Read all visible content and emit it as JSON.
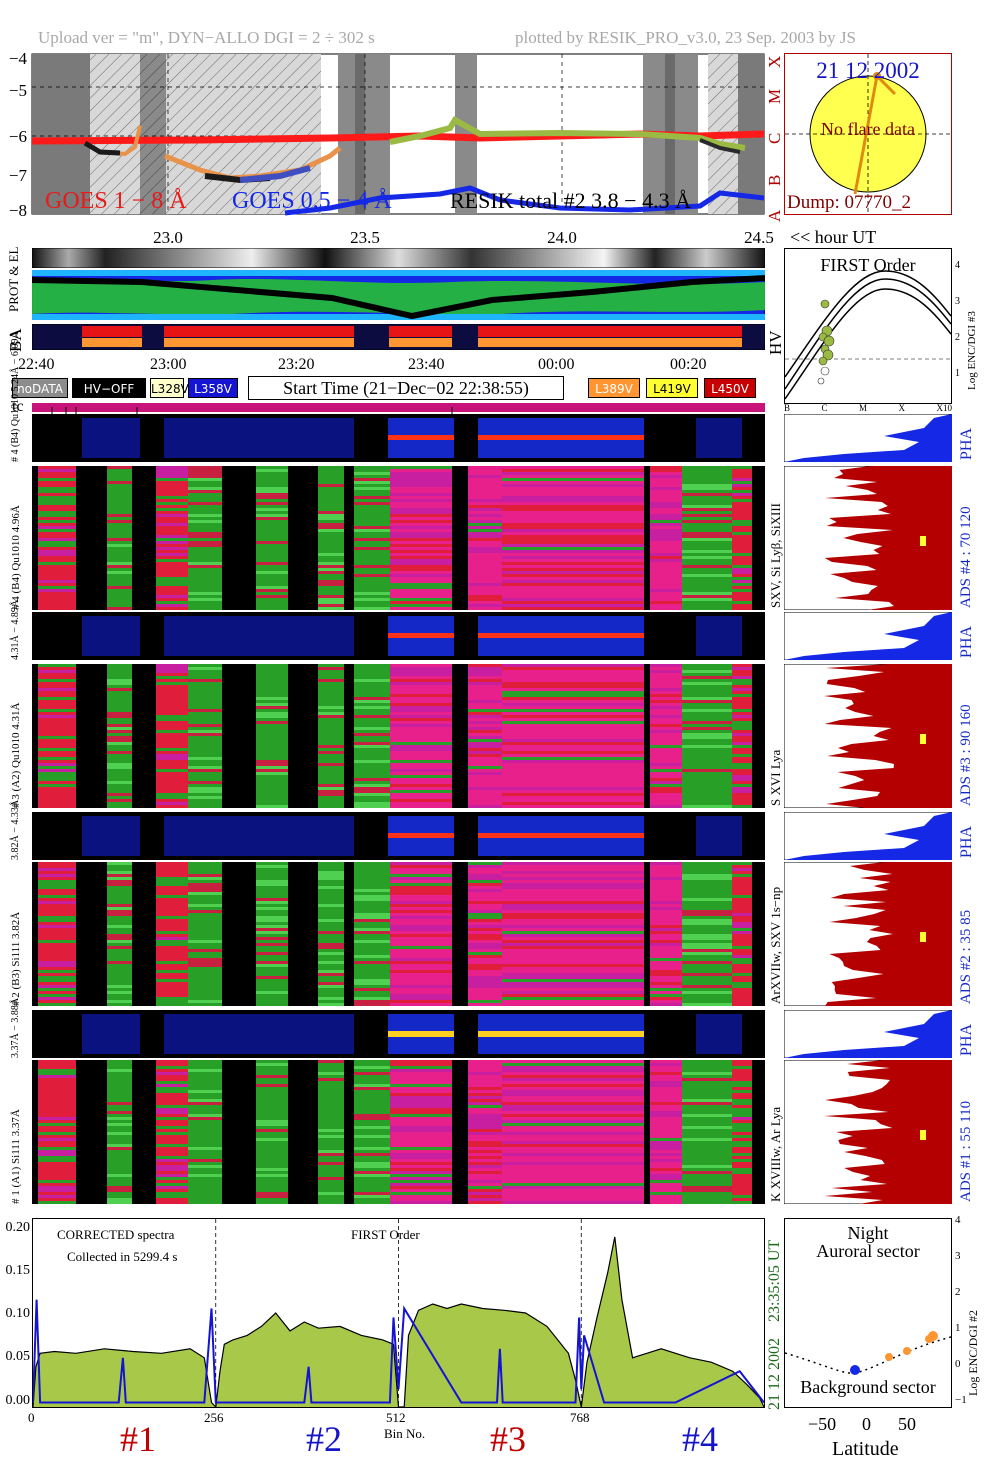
{
  "header": {
    "left": "Upload ver = \"m\", DYN−ALLO DGI =   2 ÷ 302 s",
    "right": "plotted by RESIK_PRO_v3.0, 23 Sep. 2003 by JS"
  },
  "goes_panel": {
    "yticks": [
      "−4",
      "−5",
      "−6",
      "−7",
      "−8"
    ],
    "class_letters": [
      "X",
      "M",
      "C",
      "B",
      "A"
    ],
    "xticks": [
      "23.0",
      "23.5",
      "24.0",
      "24.5"
    ],
    "xunit": "<< hour UT",
    "legend_goes18": "GOES 1 − 8 Å",
    "legend_goes054": "GOES 0.5 − 4 Å",
    "legend_resik": "RESIK total #2  3.8 − 4.3 Å"
  },
  "sun_panel": {
    "date": "21 12 2002",
    "message": "No flare data",
    "dump": "Dump: 07770_2"
  },
  "orbit_panel": {
    "label_prot": "PROT & EL",
    "label_ba": "BA",
    "label_hv": "HV",
    "time_ticks": [
      "22:40",
      "23:00",
      "23:20",
      "23:40",
      "00:00",
      "00:20"
    ]
  },
  "legend": {
    "items": [
      {
        "label": "noDATA",
        "bg": "#8c8c8c",
        "fg": "#ffffff"
      },
      {
        "label": "HV−OFF",
        "bg": "#000000",
        "fg": "#ffffff"
      },
      {
        "label": "L328V",
        "bg": "#ffffcc",
        "fg": "#000000"
      },
      {
        "label": "L358V",
        "bg": "#1414d2",
        "fg": "#ffffff"
      },
      {
        "label": "L389V",
        "bg": "#ff9632",
        "fg": "#ffffff"
      },
      {
        "label": "L419V",
        "bg": "#ffff32",
        "fg": "#000000"
      },
      {
        "label": "L450V",
        "bg": "#c80000",
        "fg": "#ffffff"
      }
    ],
    "start_time": "Start Time (21−Dec−02 22:38:55)",
    "tc": "tc"
  },
  "first_order_panel": {
    "title": "FIRST Order",
    "ylabel": "Log ENC/DGI #3",
    "yticks": [
      "4",
      "3",
      "2",
      "1",
      "0"
    ],
    "xticks": [
      "B",
      "C",
      "M",
      "X",
      "X10"
    ]
  },
  "channels": [
    {
      "id": 4,
      "pha_label": "# 4 (B4) Qu1010 5.24Å − 6.09Å",
      "spec_label": "# 4 (B4) Qu1010 4.96Å",
      "lines": "SXV, Si Lyβ, SiXIII",
      "ads": "ADS #4 :   70 120"
    },
    {
      "id": 3,
      "pha_label": "4.31Å − 4.89Å",
      "spec_label": "# 3 (A2) Qu1010 4.31Å",
      "lines": "S XVI Lya",
      "ads": "ADS #3 :   90 160"
    },
    {
      "id": 2,
      "pha_label": "3.82Å − 4.33Å",
      "spec_label": "# 2 (B3) Si111 3.82Å",
      "lines": "ArXVIIw, SXV 1s−np",
      "ads": "ADS #2 :   35  85"
    },
    {
      "id": 1,
      "pha_label": "3.37Å − 3.88Å",
      "spec_label": "# 1 (A1) Si111 3.37Å",
      "lines": "K XVIIIw, Ar Lya",
      "ads": "ADS #1 :   55 110"
    }
  ],
  "pha_label": "PHA",
  "spectrum_panel": {
    "text1": "CORRECTED spectra",
    "text2": "Collected in  5299.4 s",
    "text3": "FIRST Order",
    "time_label": "23:35:05 UT",
    "date_label": "21 12 2002",
    "xlabel": "Bin No.",
    "xticks": [
      "0",
      "256",
      "512",
      "768"
    ],
    "yticks": [
      "0.20",
      "0.15",
      "0.10",
      "0.05",
      "0.00"
    ],
    "channel_numbers": [
      {
        "label": "#1",
        "color": "#c00000"
      },
      {
        "label": "#2",
        "color": "#1414c8"
      },
      {
        "label": "#3",
        "color": "#c00000"
      },
      {
        "label": "#4",
        "color": "#1414c8"
      }
    ]
  },
  "latitude_panel": {
    "title1": "Night",
    "title2": "Auroral sector",
    "bottom": "Background sector",
    "xlabel": "Latitude",
    "xticks": [
      "−50",
      "0",
      "50"
    ],
    "ylabel": "Log ENC/DGI #2",
    "yticks": [
      "4",
      "3",
      "2",
      "1",
      "0",
      "−1"
    ]
  },
  "chart_data": {
    "type": "line",
    "title": "",
    "xlabel": "Bin No.",
    "ylabel": "",
    "xlim": [
      0,
      1024
    ],
    "ylim": [
      0,
      0.21
    ],
    "series": [
      {
        "color": "#000000",
        "fill": "#a8c84a",
        "x": [
          0,
          4,
          10,
          30,
          60,
          100,
          140,
          180,
          220,
          240,
          250,
          256,
          262,
          268,
          280,
          300,
          320,
          340,
          360,
          380,
          400,
          430,
          460,
          490,
          505,
          512,
          520,
          526,
          540,
          560,
          580,
          600,
          630,
          660,
          690,
          720,
          750,
          760,
          768,
          776,
          790,
          805,
          815,
          825,
          840,
          860,
          880,
          900,
          920,
          950,
          980,
          1000,
          1018,
          1024
        ],
        "y": [
          0.0,
          0.045,
          0.06,
          0.062,
          0.06,
          0.065,
          0.062,
          0.06,
          0.065,
          0.055,
          0.005,
          0.0,
          0.04,
          0.07,
          0.075,
          0.08,
          0.09,
          0.105,
          0.085,
          0.095,
          0.088,
          0.09,
          0.08,
          0.075,
          0.07,
          0.0,
          0.0,
          0.08,
          0.108,
          0.115,
          0.11,
          0.115,
          0.11,
          0.108,
          0.105,
          0.09,
          0.06,
          0.03,
          0.0,
          0.05,
          0.1,
          0.15,
          0.19,
          0.12,
          0.055,
          0.06,
          0.065,
          0.06,
          0.055,
          0.05,
          0.04,
          0.025,
          0.01,
          0.0
        ]
      },
      {
        "color": "#1414d2",
        "x": [
          0,
          5,
          10,
          60,
          120,
          126,
          130,
          200,
          240,
          250,
          256,
          262,
          300,
          380,
          386,
          390,
          500,
          505,
          512,
          520,
          600,
          650,
          654,
          658,
          760,
          765,
          768,
          772,
          800,
          900,
          990,
          1024
        ],
        "y": [
          0.005,
          0.12,
          0.005,
          0.005,
          0.005,
          0.055,
          0.005,
          0.005,
          0.005,
          0.11,
          0.005,
          0.005,
          0.005,
          0.005,
          0.045,
          0.005,
          0.005,
          0.1,
          0.02,
          0.11,
          0.005,
          0.005,
          0.065,
          0.005,
          0.005,
          0.1,
          0.02,
          0.08,
          0.005,
          0.005,
          0.04,
          0.005
        ]
      }
    ]
  }
}
